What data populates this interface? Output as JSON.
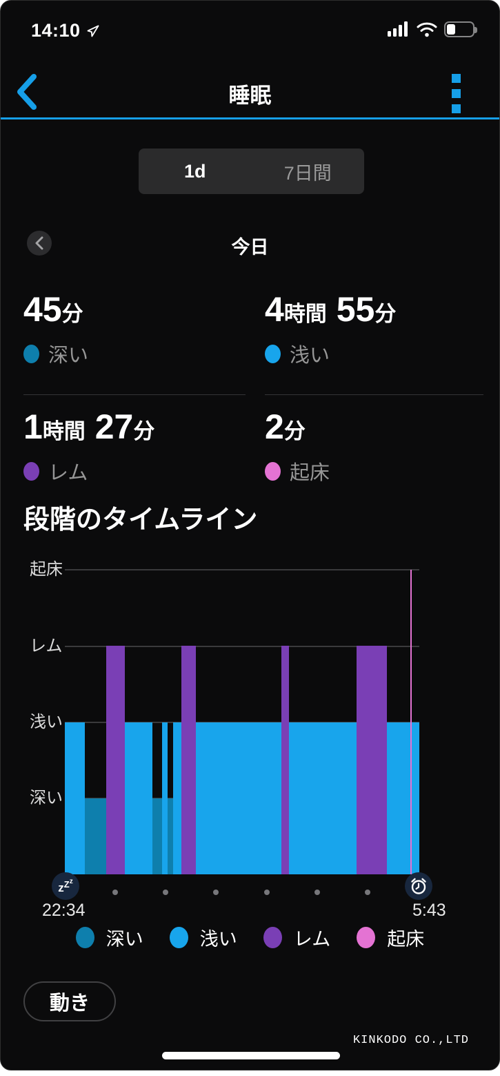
{
  "colors": {
    "accent": "#169fe8",
    "deep": "#0e7fad",
    "light": "#18a5ec",
    "rem": "#7a3fb5",
    "awake": "#e473d3"
  },
  "status_bar": {
    "time": "14:10",
    "battery_percent": 32,
    "icons": [
      "location-arrow",
      "cell-signal",
      "wifi",
      "battery"
    ]
  },
  "header": {
    "title": "睡眠",
    "back_icon": "chevron-left",
    "menu_icon": "kebab-menu"
  },
  "tabs": {
    "day": "1d",
    "week": "7日間",
    "selected": "1d"
  },
  "date_nav": {
    "label": "今日",
    "prev_icon": "chevron-left"
  },
  "stats": {
    "cards": [
      {
        "id": "deep",
        "runs": [
          [
            "45",
            "b"
          ],
          [
            "分",
            "s"
          ]
        ],
        "label": "深い"
      },
      {
        "id": "light",
        "runs": [
          [
            "4",
            "b"
          ],
          [
            "時間",
            "s"
          ],
          [
            " 55",
            "b"
          ],
          [
            "分",
            "s"
          ]
        ],
        "label": "浅い"
      },
      {
        "id": "rem",
        "runs": [
          [
            "1",
            "b"
          ],
          [
            "時間",
            "s"
          ],
          [
            " 27",
            "b"
          ],
          [
            "分",
            "s"
          ]
        ],
        "label": "レム"
      },
      {
        "id": "awake",
        "runs": [
          [
            "2",
            "b"
          ],
          [
            "分",
            "s"
          ]
        ],
        "label": "起床"
      }
    ]
  },
  "section": {
    "title": "段階のタイムライン"
  },
  "chart_data": {
    "type": "bar",
    "title": "段階のタイムライン",
    "x_start": "22:34",
    "x_end": "5:43",
    "total_minutes": 429,
    "levels": [
      {
        "label": "起床",
        "stage": "awake",
        "height_pct": 100
      },
      {
        "label": "レム",
        "stage": "rem",
        "height_pct": 75
      },
      {
        "label": "浅い",
        "stage": "light",
        "height_pct": 50
      },
      {
        "label": "深い",
        "stage": "deep",
        "height_pct": 25
      }
    ],
    "segments": [
      {
        "stage": "light",
        "minutes": 24
      },
      {
        "stage": "deep",
        "minutes": 26
      },
      {
        "stage": "rem",
        "minutes": 23
      },
      {
        "stage": "light",
        "minutes": 33
      },
      {
        "stage": "deep",
        "minutes": 12
      },
      {
        "stage": "light",
        "minutes": 6
      },
      {
        "stage": "deep",
        "minutes": 7
      },
      {
        "stage": "light",
        "minutes": 10
      },
      {
        "stage": "rem",
        "minutes": 18
      },
      {
        "stage": "light",
        "minutes": 103
      },
      {
        "stage": "rem",
        "minutes": 9
      },
      {
        "stage": "light",
        "minutes": 82
      },
      {
        "stage": "rem",
        "minutes": 37
      },
      {
        "stage": "light",
        "minutes": 28
      },
      {
        "stage": "awake",
        "minutes": 2
      },
      {
        "stage": "light",
        "minutes": 9
      }
    ],
    "legend": [
      {
        "label": "深い",
        "stage": "deep"
      },
      {
        "label": "浅い",
        "stage": "light"
      },
      {
        "label": "レム",
        "stage": "rem"
      },
      {
        "label": "起床",
        "stage": "awake"
      }
    ],
    "start_icon": "sleep-zzz",
    "end_icon": "alarm-clock"
  },
  "footer": {
    "move_button": "動き",
    "watermark": "KINKODO CO.,LTD"
  }
}
